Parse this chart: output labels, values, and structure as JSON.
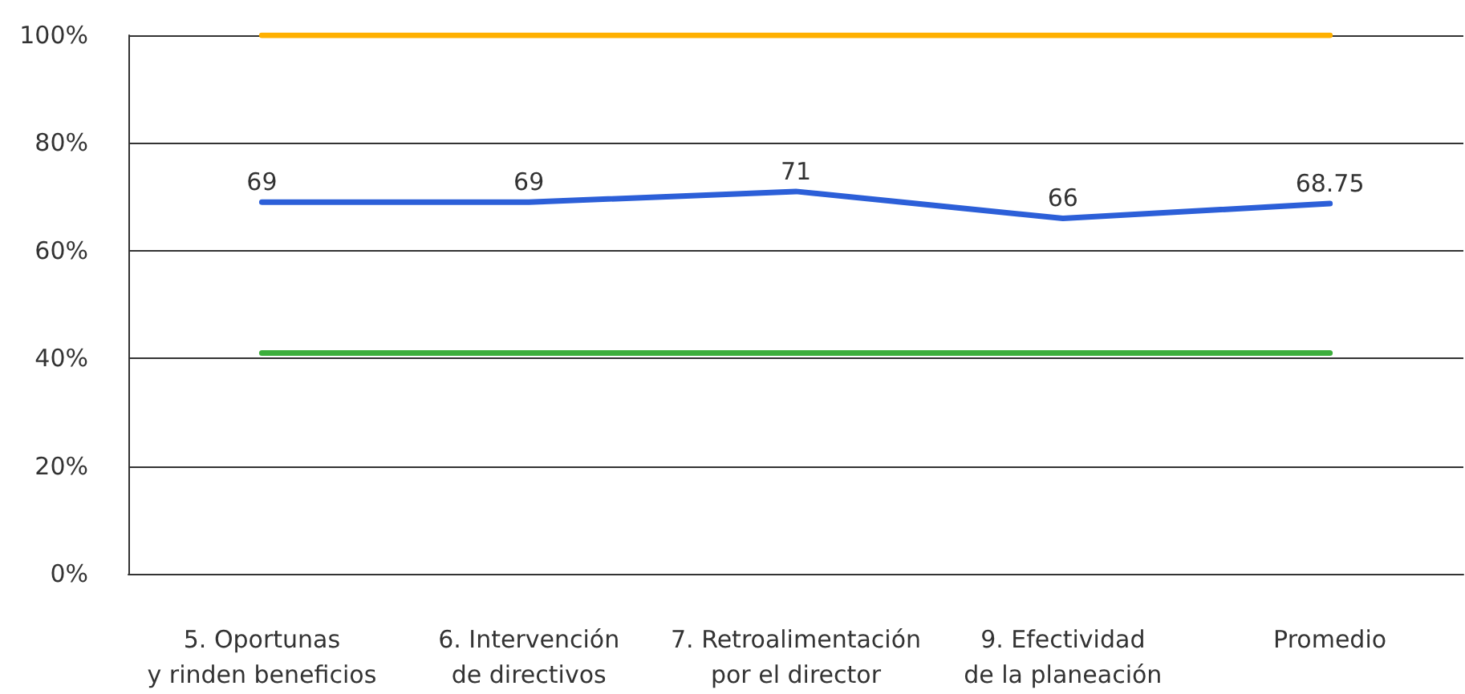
{
  "chart_data": {
    "type": "line",
    "categories": [
      "5. Oportunas\ny rinden beneficios",
      "6. Intervención\nde directivos",
      "7. Retroalimentación\npor el director",
      "9. Efectividad\nde la planeación",
      "Promedio"
    ],
    "series": [
      {
        "color": "#ffb000",
        "values": [
          100,
          100,
          100,
          100,
          100
        ]
      },
      {
        "color": "#3cae3c",
        "values": [
          41,
          41,
          41,
          41,
          41
        ]
      },
      {
        "color": "#2c5fd8",
        "values": [
          69,
          69,
          71,
          66,
          68.75
        ],
        "value_labels": [
          "69",
          "69",
          "71",
          "66",
          "68.75"
        ]
      }
    ],
    "ylim": [
      0,
      100
    ],
    "yticks": [
      {
        "value": 0,
        "label": "0%"
      },
      {
        "value": 20,
        "label": "20%"
      },
      {
        "value": 40,
        "label": "40%"
      },
      {
        "value": 60,
        "label": "60%"
      },
      {
        "value": 80,
        "label": "80%"
      },
      {
        "value": 100,
        "label": "100%"
      }
    ],
    "grid": "y",
    "marker": "none",
    "line_style": "solid"
  }
}
